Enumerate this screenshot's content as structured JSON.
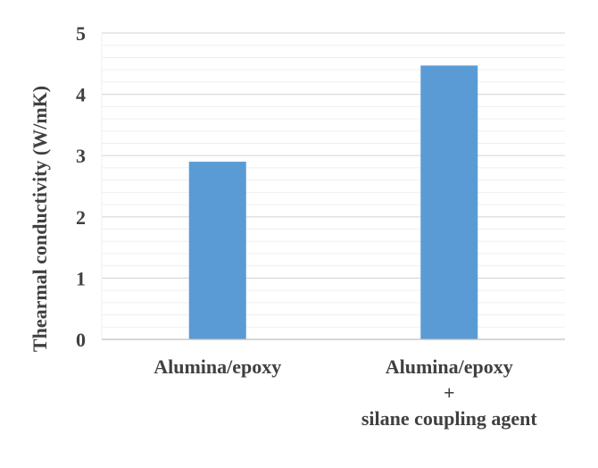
{
  "chart_data": {
    "type": "bar",
    "title": "",
    "xlabel": "",
    "ylabel": "Thearmal conductivity (W/mK)",
    "ylim": [
      0,
      5
    ],
    "yticks": [
      "0",
      "1",
      "2",
      "3",
      "4",
      "5"
    ],
    "minor_grid_step": 0.2,
    "grid": true,
    "legend": "none",
    "bar_color": "#5b9bd5",
    "categories": [
      {
        "lines": [
          "Alumina/epoxy"
        ]
      },
      {
        "lines": [
          "Alumina/epoxy",
          "+",
          "silane coupling agent"
        ]
      }
    ],
    "values": [
      2.9,
      4.47
    ]
  }
}
